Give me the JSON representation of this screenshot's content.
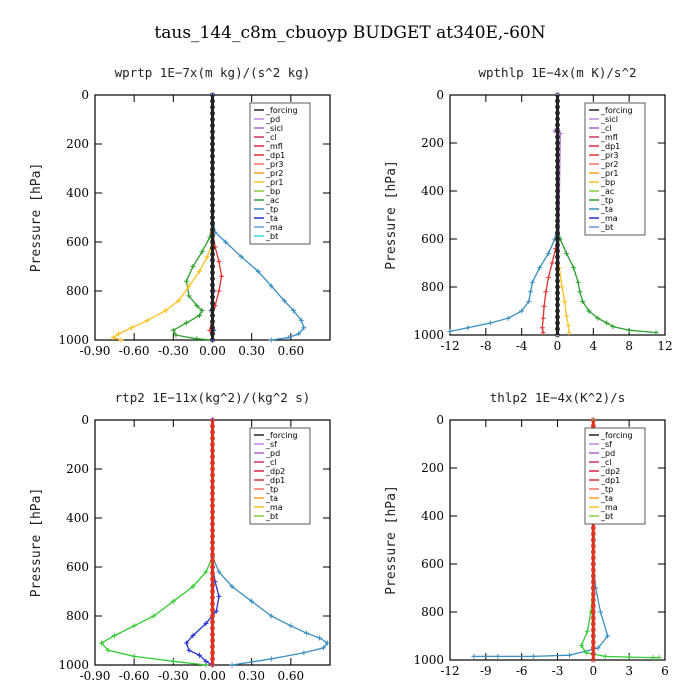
{
  "figure_title": "taus_144_c8m_cbuoyp  BUDGET at340E,-60N",
  "chart_data": [
    {
      "type": "line",
      "title": "wprtp   1E−7x(m kg)/(s^2 kg)",
      "ylabel": "Pressure [hPa]",
      "xlim": [
        -0.9,
        0.9
      ],
      "ylim": [
        1000,
        0
      ],
      "xticks": [
        "-0.90",
        "-0.60",
        "-0.30",
        "0.00",
        "0.30",
        "0.60"
      ],
      "xtick_values": [
        -0.9,
        -0.6,
        -0.3,
        0.0,
        0.3,
        0.6
      ],
      "yticks": [
        "0",
        "200",
        "400",
        "600",
        "800",
        "1000"
      ],
      "ytick_values": [
        0,
        200,
        400,
        600,
        800,
        1000
      ],
      "legend": [
        "_forcing",
        "_pd",
        "_sicl",
        "_cl",
        "_mfl",
        "_dp1",
        "_pr3",
        "_pr2",
        "_pr1",
        "_bp",
        "_ac",
        "_tp",
        "_ta",
        "_ma",
        "_bt"
      ],
      "series": [
        {
          "name": "_tp",
          "color": "#3a8fc0",
          "x": [
            0,
            0,
            0.02,
            0.1,
            0.22,
            0.35,
            0.45,
            0.55,
            0.62,
            0.68,
            0.7,
            0.66,
            0.58,
            0.45
          ],
          "y": [
            0,
            500,
            560,
            600,
            660,
            720,
            780,
            840,
            880,
            920,
            950,
            975,
            990,
            1000
          ]
        },
        {
          "name": "_ac",
          "color": "#2ca02c",
          "x": [
            0,
            0,
            -0.02,
            -0.08,
            -0.15,
            -0.2,
            -0.18,
            -0.12,
            -0.08,
            -0.1,
            -0.2,
            -0.3,
            -0.28,
            -0.12,
            0
          ],
          "y": [
            0,
            520,
            580,
            640,
            700,
            760,
            820,
            860,
            880,
            900,
            930,
            960,
            980,
            995,
            1000
          ]
        },
        {
          "name": "_pr1",
          "color": "#ffc020",
          "x": [
            0,
            0,
            -0.04,
            -0.1,
            -0.18,
            -0.26,
            -0.36,
            -0.5,
            -0.62,
            -0.72,
            -0.76,
            -0.7
          ],
          "y": [
            0,
            600,
            660,
            720,
            780,
            840,
            880,
            920,
            950,
            975,
            990,
            1000
          ]
        },
        {
          "name": "_dp1",
          "color": "#e03030",
          "x": [
            0,
            0,
            0.02,
            0.05,
            0.07,
            0.05,
            0.02,
            0,
            -0.02,
            0
          ],
          "y": [
            0,
            560,
            620,
            680,
            740,
            800,
            860,
            900,
            960,
            1000
          ]
        },
        {
          "name": "_ta",
          "color": "#2233cc",
          "x": [
            0,
            0,
            0.01,
            -0.01,
            0.01,
            0
          ],
          "y": [
            0,
            700,
            800,
            880,
            960,
            1000
          ]
        },
        {
          "name": "_forcing",
          "color": "#222222",
          "x": [
            0,
            0
          ],
          "y": [
            0,
            1000
          ]
        }
      ]
    },
    {
      "type": "line",
      "title": "wpthlp   1E−4x(m K)/s^2",
      "ylabel": "Pressure [hPa]",
      "xlim": [
        -12,
        12
      ],
      "ylim": [
        1000,
        0
      ],
      "xticks": [
        "-12",
        "-8",
        "-4",
        "0",
        "4",
        "8",
        "12"
      ],
      "xtick_values": [
        -12,
        -8,
        -4,
        0,
        4,
        8,
        12
      ],
      "yticks": [
        "0",
        "200",
        "400",
        "600",
        "800",
        "1000"
      ],
      "ytick_values": [
        0,
        200,
        400,
        600,
        800,
        1000
      ],
      "legend": [
        "_forcing",
        "_sicl",
        "_cl",
        "_mfl",
        "_dp1",
        "_pr3",
        "_pr2",
        "_pr1",
        "_bp",
        "_ac",
        "_tp",
        "_ta",
        "_ma",
        "_bt"
      ],
      "series": [
        {
          "name": "_ac",
          "color": "#2ca02c",
          "x": [
            0,
            0,
            0.3,
            1,
            1.8,
            2.3,
            2.5,
            2.8,
            3.5,
            4.5,
            5.5,
            6.2,
            8,
            11
          ],
          "y": [
            0,
            540,
            600,
            660,
            720,
            780,
            820,
            860,
            900,
            930,
            950,
            965,
            980,
            990
          ]
        },
        {
          "name": "_tp",
          "color": "#3a8fc0",
          "x": [
            0,
            0,
            -0.3,
            -1,
            -2,
            -2.8,
            -3,
            -3.2,
            -4,
            -5.5,
            -7.5,
            -10,
            -12
          ],
          "y": [
            0,
            540,
            600,
            660,
            720,
            780,
            820,
            860,
            900,
            930,
            950,
            970,
            985
          ]
        },
        {
          "name": "_dp1",
          "color": "#e03030",
          "x": [
            0,
            0,
            -0.2,
            -0.6,
            -1,
            -1.3,
            -1.5,
            -1.6,
            -1.7,
            -1.6
          ],
          "y": [
            0,
            600,
            640,
            700,
            760,
            820,
            880,
            930,
            970,
            990
          ]
        },
        {
          "name": "_pr1",
          "color": "#ffc020",
          "x": [
            0,
            0,
            0.2,
            0.5,
            0.8,
            1,
            1.2,
            1.3
          ],
          "y": [
            0,
            650,
            720,
            800,
            860,
            920,
            960,
            990
          ]
        },
        {
          "name": "_ma",
          "color": "#aa66cc",
          "x": [
            0,
            0,
            -0.3,
            0.3,
            0
          ],
          "y": [
            0,
            140,
            150,
            160,
            1000
          ]
        },
        {
          "name": "_forcing",
          "color": "#222222",
          "x": [
            0,
            0
          ],
          "y": [
            0,
            1000
          ]
        }
      ]
    },
    {
      "type": "line",
      "title": "rtp2   1E−11x(kg^2)/(kg^2 s)",
      "ylabel": "Pressure [hPa]",
      "xlim": [
        -0.9,
        0.9
      ],
      "ylim": [
        1000,
        0
      ],
      "xticks": [
        "-0.90",
        "-0.60",
        "-0.30",
        "0.00",
        "0.30",
        "0.60"
      ],
      "xtick_values": [
        -0.9,
        -0.6,
        -0.3,
        0.0,
        0.3,
        0.6
      ],
      "yticks": [
        "0",
        "200",
        "400",
        "600",
        "800",
        "1000"
      ],
      "ytick_values": [
        0,
        200,
        400,
        600,
        800,
        1000
      ],
      "legend": [
        "_forcing",
        "_sf",
        "_pd",
        "_cl",
        "_dp2",
        "_dp1",
        "_tp",
        "_ta",
        "_ma",
        "_bt"
      ],
      "series": [
        {
          "name": "_dp1",
          "color": "#33cc33",
          "x": [
            0,
            0,
            -0.05,
            -0.15,
            -0.3,
            -0.45,
            -0.6,
            -0.75,
            -0.85,
            -0.8,
            -0.6,
            -0.3,
            -0.05
          ],
          "y": [
            0,
            560,
            620,
            680,
            740,
            800,
            840,
            880,
            910,
            940,
            965,
            985,
            1000
          ]
        },
        {
          "name": "_tp",
          "color": "#3a8fc0",
          "x": [
            0,
            0,
            0.05,
            0.15,
            0.3,
            0.45,
            0.6,
            0.72,
            0.82,
            0.88,
            0.85,
            0.7,
            0.45,
            0.15
          ],
          "y": [
            0,
            560,
            620,
            680,
            740,
            800,
            840,
            870,
            890,
            910,
            930,
            950,
            975,
            1000
          ]
        },
        {
          "name": "_ta",
          "color": "#2233cc",
          "x": [
            0,
            0,
            0.02,
            0.05,
            0.03,
            -0.05,
            -0.15,
            -0.2,
            -0.18,
            -0.1,
            -0.05,
            0
          ],
          "y": [
            0,
            600,
            660,
            720,
            780,
            830,
            880,
            910,
            940,
            960,
            985,
            1000
          ]
        },
        {
          "name": "_forcing",
          "color": "#dd3322",
          "x": [
            0,
            0
          ],
          "y": [
            0,
            1000
          ]
        }
      ]
    },
    {
      "type": "line",
      "title": "thlp2   1E−4x(K^2)/s",
      "ylabel": "Pressure [hPa]",
      "xlim": [
        -12,
        6
      ],
      "ylim": [
        1000,
        0
      ],
      "xticks": [
        "-12",
        "-9",
        "-6",
        "-3",
        "0",
        "3",
        "6"
      ],
      "xtick_values": [
        -12,
        -9,
        -6,
        -3,
        0,
        3,
        6
      ],
      "yticks": [
        "0",
        "200",
        "400",
        "600",
        "800",
        "1000"
      ],
      "ytick_values": [
        0,
        200,
        400,
        600,
        800,
        1000
      ],
      "legend": [
        "_forcing",
        "_sf",
        "_pd",
        "_cl",
        "_dp2",
        "_dp1",
        "_tp",
        "_ta",
        "_ma",
        "_bt"
      ],
      "series": [
        {
          "name": "_tp",
          "color": "#3a8fc0",
          "x": [
            0,
            0,
            0.2,
            0.6,
            1.2,
            0.4,
            -2,
            -5,
            -8,
            -10
          ],
          "y": [
            0,
            600,
            700,
            800,
            900,
            950,
            980,
            985,
            985,
            985
          ]
        },
        {
          "name": "_dp1",
          "color": "#33cc33",
          "x": [
            0,
            0,
            -0.2,
            -0.5,
            -1,
            -0.6,
            1,
            3,
            5,
            5.5
          ],
          "y": [
            0,
            700,
            800,
            880,
            940,
            970,
            985,
            988,
            990,
            990
          ]
        },
        {
          "name": "_forcing",
          "color": "#dd3322",
          "x": [
            0,
            0
          ],
          "y": [
            0,
            1000
          ]
        }
      ]
    }
  ]
}
